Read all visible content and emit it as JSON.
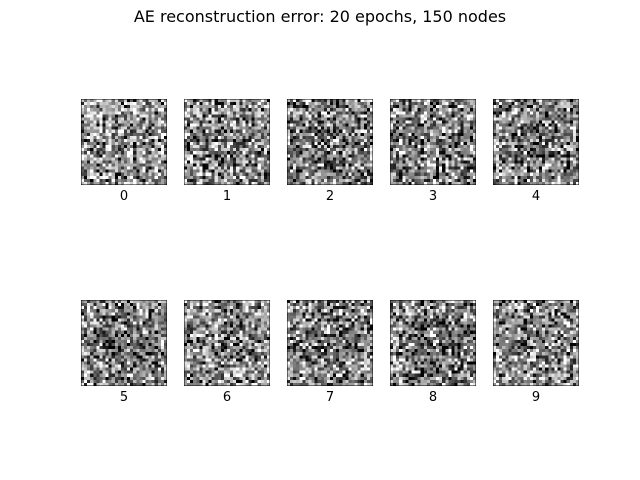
{
  "chart_data": {
    "type": "heatmap",
    "title": "AE reconstruction error: 20 epochs, 150 nodes",
    "colormap": "gray",
    "grid": false,
    "image_size": [
      28,
      28
    ],
    "layout": {
      "rows": 2,
      "columns": 5
    },
    "panels": [
      {
        "label": "0",
        "mean_gray": 0.58,
        "center_gray": 0.5
      },
      {
        "label": "1",
        "mean_gray": 0.52,
        "center_gray": 0.36
      },
      {
        "label": "2",
        "mean_gray": 0.48,
        "center_gray": 0.35
      },
      {
        "label": "3",
        "mean_gray": 0.52,
        "center_gray": 0.38
      },
      {
        "label": "4",
        "mean_gray": 0.5,
        "center_gray": 0.36
      },
      {
        "label": "5",
        "mean_gray": 0.5,
        "center_gray": 0.32
      },
      {
        "label": "6",
        "mean_gray": 0.55,
        "center_gray": 0.4
      },
      {
        "label": "7",
        "mean_gray": 0.5,
        "center_gray": 0.35
      },
      {
        "label": "8",
        "mean_gray": 0.5,
        "center_gray": 0.34
      },
      {
        "label": "9",
        "mean_gray": 0.52,
        "center_gray": 0.38
      }
    ]
  }
}
